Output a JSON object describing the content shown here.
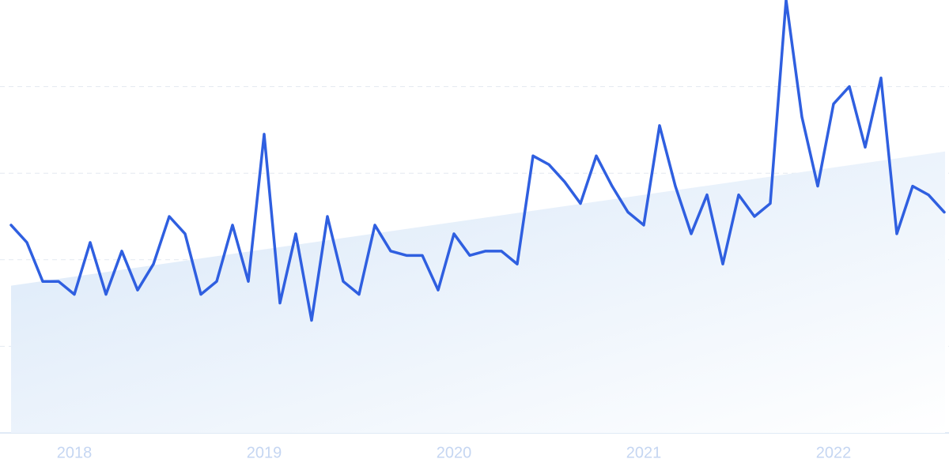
{
  "chart_data": {
    "type": "line",
    "categories": [
      null,
      null,
      null,
      null,
      "2018",
      null,
      null,
      null,
      null,
      null,
      null,
      null,
      null,
      null,
      null,
      null,
      "2019",
      null,
      null,
      null,
      null,
      null,
      null,
      null,
      null,
      null,
      null,
      null,
      "2020",
      null,
      null,
      null,
      null,
      null,
      null,
      null,
      null,
      null,
      null,
      null,
      "2021",
      null,
      null,
      null,
      null,
      null,
      null,
      null,
      null,
      null,
      null,
      null,
      "2022",
      null,
      null,
      null,
      null,
      null,
      null,
      null
    ],
    "series": [
      {
        "color": "#2f5fe0",
        "values": [
          48,
          44,
          35,
          35,
          32,
          44,
          32,
          42,
          33,
          39,
          50,
          46,
          32,
          35,
          48,
          35,
          69,
          30,
          46,
          26,
          50,
          35,
          32,
          48,
          42,
          41,
          41,
          33,
          46,
          41,
          42,
          42,
          39,
          64,
          62,
          58,
          53,
          64,
          57,
          51,
          48,
          71,
          57,
          46,
          55,
          39,
          55,
          50,
          53,
          100,
          73,
          57,
          76,
          80,
          66,
          82,
          46,
          57,
          55,
          51
        ]
      }
    ],
    "trend": [
      34,
      65
    ],
    "ylim": [
      0,
      100
    ],
    "yticks": [
      20,
      40,
      60,
      80
    ],
    "grid": true
  }
}
